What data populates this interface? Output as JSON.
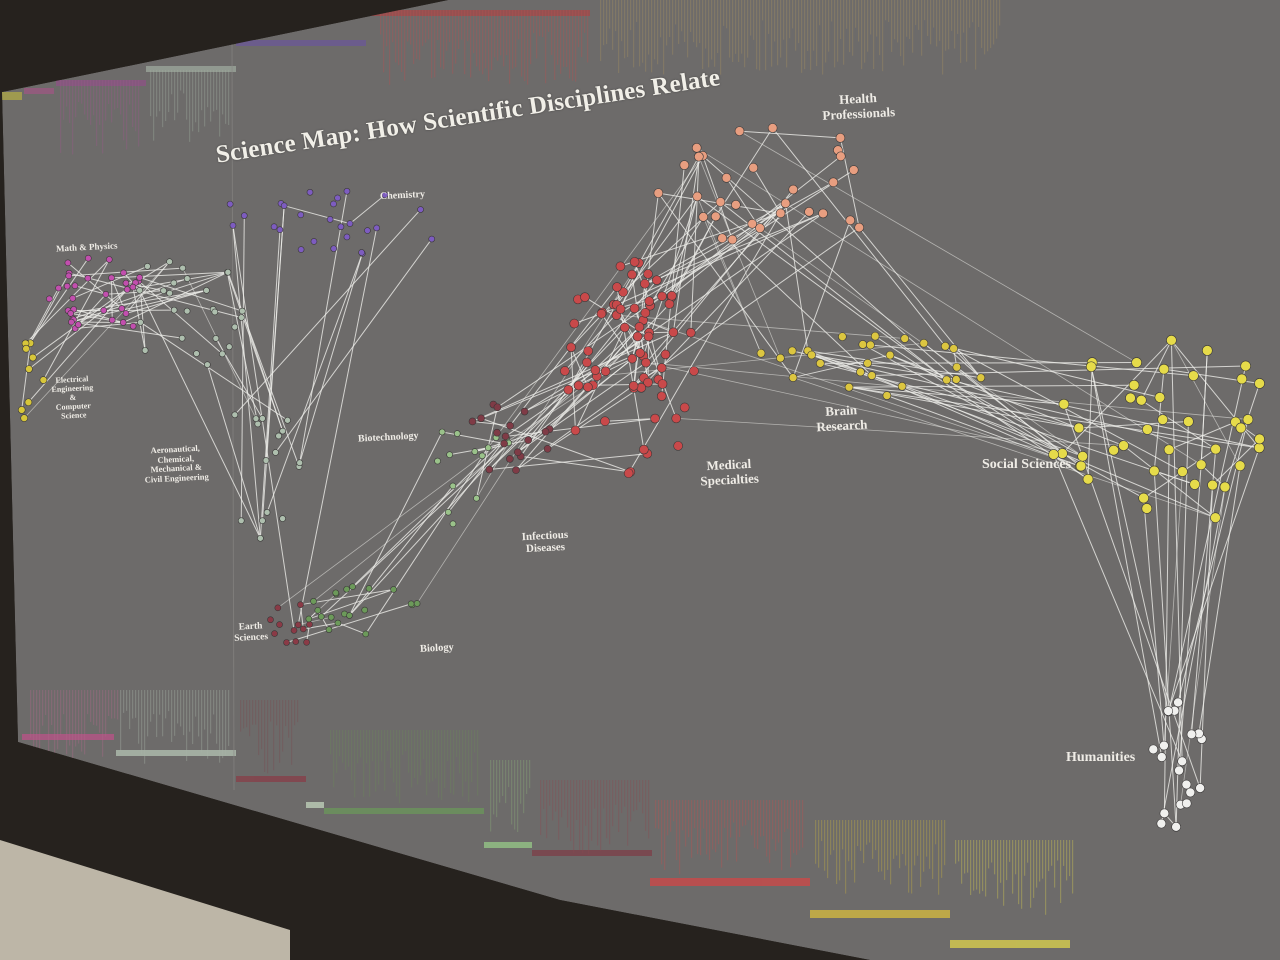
{
  "title": "Science Map: How Scientific Disciplines Relate",
  "regions": {
    "math_physics": "Math & Physics",
    "chemistry": "Chemistry",
    "health_professionals": [
      "Health",
      "Professionals"
    ],
    "electrical_engineering": [
      "Electrical",
      "Engineering",
      "&",
      "Computer",
      "Science"
    ],
    "aeronautical_engineering": [
      "Aeronautical,",
      "Chemical,",
      "Mechanical &",
      "Civil Engineering"
    ],
    "biotechnology": "Biotechnology",
    "brain_research": [
      "Brain",
      "Research"
    ],
    "medical_specialties": [
      "Medical",
      "Specialties"
    ],
    "social_sciences": "Social Sciences",
    "infectious_diseases": [
      "Infectious",
      "Diseases"
    ],
    "earth_sciences": [
      "Earth",
      "Sciences"
    ],
    "biology": "Biology",
    "humanities": "Humanities"
  },
  "colors": {
    "background": "#6d6b6a",
    "edge": "#eeeeea",
    "math_physics": "#c24fae",
    "electrical": "#d7c63a",
    "engineering": "#aebfae",
    "chemistry": "#7d5cc0",
    "earth": "#8a3a46",
    "biology": "#6c9a5a",
    "biotech": "#9ac28a",
    "infectious": "#7f3b46",
    "medical": "#c9494a",
    "health": "#e89e80",
    "brain": "#dcc640",
    "social": "#e6db4a",
    "humanities": "#f0f0ee"
  }
}
